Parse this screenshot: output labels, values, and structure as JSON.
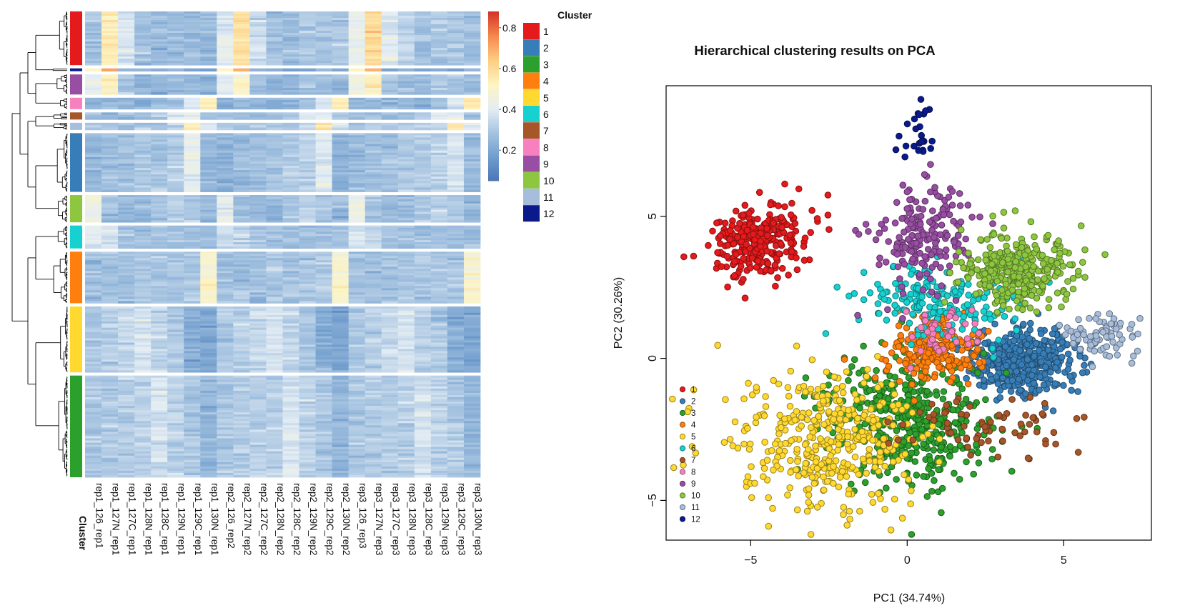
{
  "chart_data": [
    {
      "type": "heatmap",
      "title": "",
      "columns": [
        "rep1_126_rep1",
        "rep1_127N_rep1",
        "rep1_127C_rep1",
        "rep1_128N_rep1",
        "rep1_128C_rep1",
        "rep1_129N_rep1",
        "rep1_129C_rep1",
        "rep1_130N_rep1",
        "rep2_126_rep2",
        "rep2_127N_rep2",
        "rep2_127C_rep2",
        "rep2_128N_rep2",
        "rep2_128C_rep2",
        "rep2_129N_rep2",
        "rep2_129C_rep2",
        "rep2_130N_rep2",
        "rep3_126_rep3",
        "rep3_127N_rep3",
        "rep3_127C_rep3",
        "rep3_128N_rep3",
        "rep3_128C_rep3",
        "rep3_129N_rep3",
        "rep3_129C_rep3",
        "rep3_130N_rep3"
      ],
      "annotation_label": "Cluster",
      "color_scale": {
        "colors": [
          "#4a74b4",
          "#6f9ccc",
          "#a4c2e0",
          "#e4edf4",
          "#fdf5c4",
          "#fdce82",
          "#f68a4e",
          "#d6352a"
        ],
        "ticks": [
          0.2,
          0.4,
          0.6,
          0.8
        ],
        "range": [
          0.05,
          0.88
        ]
      },
      "row_blocks": [
        {
          "cluster": "1",
          "relative_height": 75,
          "values": [
            0.28,
            0.55,
            0.38,
            0.28,
            0.26,
            0.28,
            0.27,
            0.26,
            0.4,
            0.58,
            0.36,
            0.28,
            0.27,
            0.3,
            0.3,
            0.3,
            0.42,
            0.6,
            0.4,
            0.33,
            0.28,
            0.3,
            0.3,
            0.28
          ]
        },
        {
          "cluster": "12",
          "relative_height": 4,
          "values": [
            0.55,
            0.72,
            0.25,
            0.25,
            0.22,
            0.22,
            0.22,
            0.22,
            0.55,
            0.72,
            0.25,
            0.25,
            0.22,
            0.22,
            0.22,
            0.22,
            0.55,
            0.72,
            0.25,
            0.25,
            0.22,
            0.22,
            0.22,
            0.22
          ]
        },
        {
          "cluster": "9",
          "relative_height": 28,
          "values": [
            0.42,
            0.52,
            0.3,
            0.25,
            0.25,
            0.27,
            0.26,
            0.25,
            0.4,
            0.5,
            0.3,
            0.25,
            0.26,
            0.3,
            0.28,
            0.26,
            0.45,
            0.52,
            0.31,
            0.28,
            0.26,
            0.3,
            0.29,
            0.27
          ]
        },
        {
          "cluster": "8",
          "relative_height": 16,
          "values": [
            0.25,
            0.25,
            0.25,
            0.25,
            0.25,
            0.28,
            0.38,
            0.55,
            0.25,
            0.25,
            0.25,
            0.25,
            0.25,
            0.28,
            0.38,
            0.55,
            0.25,
            0.25,
            0.25,
            0.25,
            0.25,
            0.28,
            0.38,
            0.55
          ]
        },
        {
          "cluster": "7",
          "relative_height": 10,
          "values": [
            0.27,
            0.27,
            0.27,
            0.27,
            0.3,
            0.42,
            0.4,
            0.28,
            0.27,
            0.27,
            0.27,
            0.28,
            0.3,
            0.42,
            0.4,
            0.28,
            0.27,
            0.27,
            0.27,
            0.28,
            0.3,
            0.42,
            0.4,
            0.28
          ]
        },
        {
          "cluster": "11",
          "relative_height": 10,
          "values": [
            0.3,
            0.3,
            0.3,
            0.3,
            0.3,
            0.35,
            0.55,
            0.38,
            0.3,
            0.3,
            0.3,
            0.3,
            0.3,
            0.35,
            0.55,
            0.38,
            0.3,
            0.3,
            0.3,
            0.3,
            0.3,
            0.35,
            0.55,
            0.38
          ]
        },
        {
          "cluster": "2",
          "relative_height": 82,
          "values": [
            0.25,
            0.27,
            0.28,
            0.3,
            0.3,
            0.32,
            0.42,
            0.25,
            0.24,
            0.26,
            0.28,
            0.3,
            0.31,
            0.33,
            0.4,
            0.25,
            0.26,
            0.28,
            0.29,
            0.31,
            0.31,
            0.33,
            0.38,
            0.26
          ]
        },
        {
          "cluster": "10",
          "relative_height": 38,
          "values": [
            0.45,
            0.28,
            0.26,
            0.25,
            0.3,
            0.32,
            0.3,
            0.26,
            0.42,
            0.28,
            0.26,
            0.25,
            0.3,
            0.33,
            0.3,
            0.26,
            0.45,
            0.28,
            0.27,
            0.26,
            0.3,
            0.33,
            0.3,
            0.26
          ]
        },
        {
          "cluster": "6",
          "relative_height": 32,
          "values": [
            0.4,
            0.38,
            0.3,
            0.28,
            0.28,
            0.28,
            0.28,
            0.27,
            0.35,
            0.34,
            0.3,
            0.28,
            0.28,
            0.28,
            0.28,
            0.27,
            0.36,
            0.35,
            0.3,
            0.28,
            0.28,
            0.28,
            0.28,
            0.27
          ]
        },
        {
          "cluster": "4",
          "relative_height": 72,
          "values": [
            0.28,
            0.28,
            0.28,
            0.3,
            0.3,
            0.3,
            0.3,
            0.5,
            0.28,
            0.28,
            0.28,
            0.3,
            0.3,
            0.3,
            0.3,
            0.5,
            0.28,
            0.28,
            0.28,
            0.3,
            0.3,
            0.3,
            0.3,
            0.5
          ]
        },
        {
          "cluster": "5",
          "relative_height": 92,
          "values": [
            0.3,
            0.33,
            0.35,
            0.38,
            0.34,
            0.3,
            0.22,
            0.2,
            0.3,
            0.33,
            0.35,
            0.38,
            0.34,
            0.3,
            0.22,
            0.2,
            0.3,
            0.33,
            0.35,
            0.38,
            0.34,
            0.3,
            0.22,
            0.2
          ]
        },
        {
          "cluster": "3",
          "relative_height": 142,
          "values": [
            0.3,
            0.32,
            0.32,
            0.33,
            0.38,
            0.33,
            0.3,
            0.25,
            0.3,
            0.32,
            0.32,
            0.33,
            0.38,
            0.33,
            0.3,
            0.25,
            0.3,
            0.32,
            0.32,
            0.33,
            0.38,
            0.33,
            0.3,
            0.25
          ]
        }
      ]
    },
    {
      "type": "scatter",
      "title": "Hierarchical clustering results on PCA",
      "xlabel": "PC1 (34.74%)",
      "ylabel": "PC2 (30.26%)",
      "xlim": [
        -7.7,
        7.8
      ],
      "ylim": [
        -6.4,
        9.6
      ],
      "xticks": [
        -5,
        0,
        5
      ],
      "yticks": [
        -5,
        0,
        5
      ],
      "legend_position": "bottom-left",
      "series": [
        {
          "name": "1",
          "color": "#e41a1c",
          "center": [
            -4.7,
            4.1
          ],
          "spread": [
            0.75,
            0.65
          ],
          "count": 300
        },
        {
          "name": "2",
          "color": "#377eb8",
          "center": [
            3.6,
            -0.1
          ],
          "spread": [
            0.85,
            0.55
          ],
          "count": 420
        },
        {
          "name": "3",
          "color": "#2ca02c",
          "center": [
            0.1,
            -2.3
          ],
          "spread": [
            1.2,
            1.2
          ],
          "count": 450
        },
        {
          "name": "4",
          "color": "#ff7f0e",
          "center": [
            0.8,
            0.3
          ],
          "spread": [
            0.7,
            0.55
          ],
          "count": 200
        },
        {
          "name": "5",
          "color": "#ffd92f",
          "center": [
            -2.5,
            -2.9
          ],
          "spread": [
            1.5,
            1.2
          ],
          "count": 400
        },
        {
          "name": "6",
          "color": "#17d0d0",
          "center": [
            0.9,
            2.0
          ],
          "spread": [
            1.3,
            0.6
          ],
          "count": 190
        },
        {
          "name": "7",
          "color": "#a65628",
          "center": [
            2.6,
            -2.4
          ],
          "spread": [
            1.3,
            0.5
          ],
          "count": 70
        },
        {
          "name": "8",
          "color": "#f781bf",
          "center": [
            1.2,
            0.8
          ],
          "spread": [
            0.5,
            0.5
          ],
          "count": 40
        },
        {
          "name": "9",
          "color": "#984ea3",
          "center": [
            0.6,
            4.3
          ],
          "spread": [
            0.8,
            0.95
          ],
          "count": 190
        },
        {
          "name": "10",
          "color": "#8dc63f",
          "center": [
            3.5,
            3.1
          ],
          "spread": [
            0.9,
            0.65
          ],
          "count": 330
        },
        {
          "name": "11",
          "color": "#a6bddb",
          "center": [
            6.3,
            0.8
          ],
          "spread": [
            0.55,
            0.4
          ],
          "count": 80
        },
        {
          "name": "12",
          "color": "#0a1a8a",
          "center": [
            0.4,
            7.9
          ],
          "spread": [
            0.3,
            0.65
          ],
          "count": 25
        }
      ]
    }
  ],
  "legend": {
    "title": "Cluster",
    "items": [
      {
        "label": "1",
        "color": "#e41a1c"
      },
      {
        "label": "2",
        "color": "#377eb8"
      },
      {
        "label": "3",
        "color": "#2ca02c"
      },
      {
        "label": "4",
        "color": "#ff7f0e"
      },
      {
        "label": "5",
        "color": "#ffd92f"
      },
      {
        "label": "6",
        "color": "#17d0d0"
      },
      {
        "label": "7",
        "color": "#a65628"
      },
      {
        "label": "8",
        "color": "#f781bf"
      },
      {
        "label": "9",
        "color": "#984ea3"
      },
      {
        "label": "10",
        "color": "#8dc63f"
      },
      {
        "label": "11",
        "color": "#a6bddb"
      },
      {
        "label": "12",
        "color": "#0a1a8a"
      }
    ]
  }
}
